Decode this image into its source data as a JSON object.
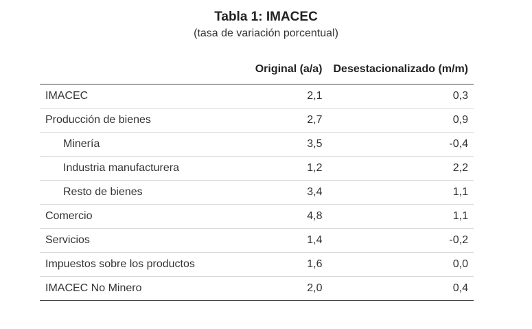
{
  "title": "Tabla 1:  IMACEC",
  "subtitle": "(tasa de variación porcentual)",
  "columns": [
    "",
    "Original (a/a)",
    "Desestacionalizado (m/m)"
  ],
  "rows": [
    {
      "label": "IMACEC",
      "original": "2,1",
      "desest": "0,3",
      "indent": false
    },
    {
      "label": "Producción de bienes",
      "original": "2,7",
      "desest": "0,9",
      "indent": false
    },
    {
      "label": "Minería",
      "original": "3,5",
      "desest": "-0,4",
      "indent": true
    },
    {
      "label": "Industria manufacturera",
      "original": "1,2",
      "desest": "2,2",
      "indent": true
    },
    {
      "label": "Resto de bienes",
      "original": "3,4",
      "desest": "1,1",
      "indent": true
    },
    {
      "label": "Comercio",
      "original": "4,8",
      "desest": "1,1",
      "indent": false
    },
    {
      "label": "Servicios",
      "original": "1,4",
      "desest": "-0,2",
      "indent": false
    },
    {
      "label": "Impuestos sobre los productos",
      "original": "1,6",
      "desest": "0,0",
      "indent": false
    },
    {
      "label": "IMACEC No Minero",
      "original": "2,0",
      "desest": "0,4",
      "indent": false
    }
  ]
}
